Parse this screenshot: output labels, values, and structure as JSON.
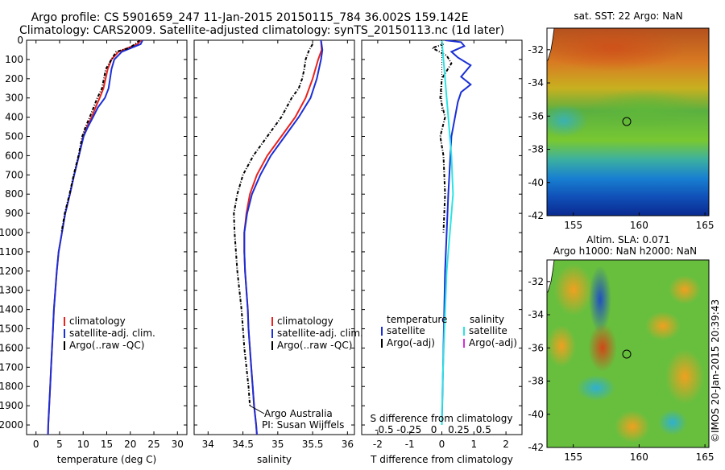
{
  "header": {
    "line1": "Argo profile: CS 5901659_247 11-Jan-2015 20150115_784 36.002S 159.142E",
    "line2": "Climatology: CARS2009. Satellite-adjusted climatology: synTS_20150113.nc (1d later)"
  },
  "colors": {
    "climatology": "#e8231f",
    "satellite": "#1a2fd6",
    "argo": "#000000",
    "sat_salinity": "#2ee3e3",
    "argo_adj_salinity": "#d62fd6"
  },
  "chart_data": [
    {
      "id": "temperature",
      "type": "line",
      "xlabel": "temperature (deg C)",
      "xlim": [
        -2,
        32
      ],
      "ylim": [
        2050,
        0
      ],
      "xticks": [
        0,
        5,
        10,
        15,
        20,
        25,
        30
      ],
      "yticks": [
        0,
        100,
        200,
        300,
        400,
        500,
        600,
        700,
        800,
        900,
        1000,
        1100,
        1200,
        1300,
        1400,
        1500,
        1600,
        1700,
        1800,
        1900,
        2000
      ],
      "legend": [
        "climatology",
        "satellite-adj. clim.",
        "Argo(..raw -QC)"
      ],
      "series": [
        {
          "name": "climatology",
          "color": "#e8231f",
          "points": [
            [
              22.3,
              0
            ],
            [
              21.5,
              20
            ],
            [
              19.5,
              40
            ],
            [
              17.5,
              60
            ],
            [
              16,
              100
            ],
            [
              15.2,
              150
            ],
            [
              14.3,
              250
            ],
            [
              13.5,
              300
            ],
            [
              12.6,
              350
            ],
            [
              11.8,
              400
            ],
            [
              10.8,
              450
            ],
            [
              10,
              500
            ],
            [
              9.1,
              600
            ],
            [
              8.1,
              700
            ],
            [
              7.2,
              800
            ],
            [
              6.2,
              900
            ],
            [
              5.5,
              1000
            ],
            [
              4.8,
              1100
            ],
            [
              4.4,
              1200
            ],
            [
              4.1,
              1300
            ],
            [
              3.8,
              1400
            ],
            [
              3.6,
              1500
            ],
            [
              3.4,
              1600
            ],
            [
              3.2,
              1700
            ],
            [
              3.0,
              1800
            ],
            [
              2.8,
              1900
            ],
            [
              2.6,
              2000
            ],
            [
              2.55,
              2050
            ]
          ]
        },
        {
          "name": "satellite-adj. clim.",
          "color": "#1a2fd6",
          "points": [
            [
              22.6,
              0
            ],
            [
              22.2,
              20
            ],
            [
              20.2,
              40
            ],
            [
              18.2,
              60
            ],
            [
              16.6,
              100
            ],
            [
              16,
              150
            ],
            [
              15.4,
              250
            ],
            [
              14.6,
              300
            ],
            [
              13.1,
              350
            ],
            [
              12.1,
              400
            ],
            [
              11,
              450
            ],
            [
              10.1,
              500
            ],
            [
              9.1,
              600
            ],
            [
              8.1,
              700
            ],
            [
              7.2,
              800
            ],
            [
              6.2,
              900
            ],
            [
              5.5,
              1000
            ],
            [
              4.8,
              1100
            ],
            [
              4.4,
              1200
            ],
            [
              4.1,
              1300
            ],
            [
              3.8,
              1400
            ],
            [
              3.6,
              1500
            ],
            [
              3.4,
              1600
            ],
            [
              3.2,
              1700
            ],
            [
              3.0,
              1800
            ],
            [
              2.8,
              1900
            ],
            [
              2.6,
              2000
            ],
            [
              2.55,
              2050
            ]
          ]
        },
        {
          "name": "Argo(..raw -QC)",
          "color": "#000000",
          "points": [
            [
              22,
              0
            ],
            [
              21,
              20
            ],
            [
              19.8,
              40
            ],
            [
              17,
              60
            ],
            [
              16,
              100
            ],
            [
              14.8,
              150
            ],
            [
              14,
              250
            ],
            [
              13,
              300
            ],
            [
              12.2,
              350
            ],
            [
              11.4,
              400
            ],
            [
              10.5,
              450
            ],
            [
              9.8,
              500
            ],
            [
              9,
              600
            ],
            [
              8,
              700
            ],
            [
              7.1,
              800
            ],
            [
              6.1,
              900
            ],
            [
              5.4,
              1000
            ]
          ]
        }
      ]
    },
    {
      "id": "salinity",
      "type": "line",
      "xlabel": "salinity",
      "xlim": [
        33.8,
        36.1
      ],
      "ylim": [
        2050,
        0
      ],
      "xticks": [
        34,
        34.5,
        35,
        35.5,
        36
      ],
      "legend": [
        "climatology",
        "satellite-adj. clim.",
        "Argo(..raw -QC)"
      ],
      "annotation": [
        "Argo Australia",
        "PI: Susan Wijffels"
      ],
      "series": [
        {
          "name": "climatology",
          "color": "#e8231f",
          "points": [
            [
              35.62,
              0
            ],
            [
              35.63,
              50
            ],
            [
              35.58,
              100
            ],
            [
              35.5,
              200
            ],
            [
              35.4,
              300
            ],
            [
              35.25,
              400
            ],
            [
              35.05,
              500
            ],
            [
              34.85,
              600
            ],
            [
              34.7,
              700
            ],
            [
              34.6,
              800
            ],
            [
              34.55,
              900
            ],
            [
              34.52,
              1000
            ],
            [
              34.52,
              1100
            ],
            [
              34.53,
              1200
            ],
            [
              34.55,
              1300
            ],
            [
              34.57,
              1400
            ],
            [
              34.58,
              1500
            ],
            [
              34.6,
              1600
            ],
            [
              34.62,
              1700
            ],
            [
              34.64,
              1800
            ],
            [
              34.66,
              1900
            ],
            [
              34.69,
              2000
            ],
            [
              34.7,
              2050
            ]
          ]
        },
        {
          "name": "satellite-adj. clim.",
          "color": "#1a2fd6",
          "points": [
            [
              35.62,
              0
            ],
            [
              35.64,
              50
            ],
            [
              35.62,
              100
            ],
            [
              35.56,
              200
            ],
            [
              35.47,
              300
            ],
            [
              35.3,
              400
            ],
            [
              35.1,
              500
            ],
            [
              34.9,
              600
            ],
            [
              34.75,
              700
            ],
            [
              34.63,
              800
            ],
            [
              34.56,
              900
            ],
            [
              34.52,
              1000
            ],
            [
              34.52,
              1100
            ],
            [
              34.53,
              1200
            ],
            [
              34.55,
              1300
            ],
            [
              34.57,
              1400
            ],
            [
              34.58,
              1500
            ],
            [
              34.6,
              1600
            ],
            [
              34.62,
              1700
            ],
            [
              34.64,
              1800
            ],
            [
              34.66,
              1900
            ],
            [
              34.69,
              2000
            ],
            [
              34.7,
              2050
            ]
          ]
        },
        {
          "name": "Argo(..raw -QC)",
          "color": "#000000",
          "points": [
            [
              35.5,
              20
            ],
            [
              35.45,
              50
            ],
            [
              35.4,
              100
            ],
            [
              35.38,
              150
            ],
            [
              35.35,
              200
            ],
            [
              35.3,
              250
            ],
            [
              35.2,
              300
            ],
            [
              35.05,
              400
            ],
            [
              34.85,
              500
            ],
            [
              34.65,
              600
            ],
            [
              34.5,
              700
            ],
            [
              34.42,
              800
            ],
            [
              34.37,
              900
            ],
            [
              34.38,
              1000
            ],
            [
              34.4,
              1100
            ],
            [
              34.42,
              1200
            ],
            [
              34.45,
              1300
            ],
            [
              34.48,
              1400
            ],
            [
              34.5,
              1500
            ],
            [
              34.52,
              1600
            ],
            [
              34.55,
              1700
            ],
            [
              34.58,
              1800
            ],
            [
              34.6,
              1900
            ]
          ]
        }
      ]
    },
    {
      "id": "difference",
      "type": "line",
      "xlabel": "T difference from climatology",
      "xlabel2": "S difference from climatology",
      "xlim": [
        -2.5,
        2.5
      ],
      "ylim": [
        2050,
        0
      ],
      "xticks": [
        -2,
        -1,
        0,
        1,
        2
      ],
      "xticks2": [
        "-0.5",
        "-0.25",
        "0",
        "0.25",
        "0.5"
      ],
      "legend_titles": [
        "temperature",
        "salinity"
      ],
      "legend_left": [
        "satellite",
        "Argo(-adj)"
      ],
      "legend_right": [
        "satellite",
        "Argo(-adj)"
      ],
      "series": [
        {
          "name": "satellite",
          "color": "#1a2fd6",
          "points": [
            [
              0.1,
              0
            ],
            [
              0.6,
              10
            ],
            [
              0.7,
              30
            ],
            [
              0.3,
              60
            ],
            [
              0.5,
              90
            ],
            [
              0.9,
              130
            ],
            [
              0.6,
              190
            ],
            [
              0.9,
              230
            ],
            [
              0.6,
              270
            ],
            [
              0.5,
              320
            ],
            [
              0.3,
              500
            ],
            [
              0.2,
              800
            ],
            [
              0.1,
              1200
            ],
            [
              0.05,
              1600
            ],
            [
              0,
              2000
            ]
          ]
        },
        {
          "name": "Argo(-adj)",
          "color": "#000000",
          "points": [
            [
              0.05,
              20
            ],
            [
              -0.3,
              40
            ],
            [
              0.15,
              80
            ],
            [
              0.3,
              120
            ],
            [
              0,
              200
            ],
            [
              -0.05,
              300
            ],
            [
              0.1,
              400
            ],
            [
              -0.05,
              500
            ],
            [
              0.05,
              600
            ],
            [
              0.1,
              800
            ],
            [
              0.05,
              1000
            ]
          ]
        },
        {
          "name": "salinity satellite",
          "color": "#2ee3e3",
          "points": [
            [
              0,
              0
            ],
            [
              0.1,
              200
            ],
            [
              0.2,
              400
            ],
            [
              0.3,
              600
            ],
            [
              0.35,
              800
            ],
            [
              0.25,
              1000
            ],
            [
              0.15,
              1200
            ],
            [
              0.08,
              1500
            ],
            [
              0.02,
              1800
            ],
            [
              0,
              2000
            ]
          ]
        }
      ]
    },
    {
      "id": "sst_map",
      "type": "heatmap",
      "title": "sat. SST: 22 Argo: NaN",
      "xticks": [
        "155",
        "160",
        "165"
      ],
      "yticks": [
        "-32",
        "-34",
        "-36",
        "-38",
        "-40",
        "-42"
      ],
      "xlim": [
        153,
        165.3
      ],
      "ylim": [
        -42,
        -30.7
      ],
      "marker": {
        "lon": 159.142,
        "lat": -36.002
      }
    },
    {
      "id": "sla_map",
      "type": "heatmap",
      "title": "Altim. SLA: 0.071",
      "title2": "Argo h1000: NaN h2000: NaN",
      "xticks": [
        "155",
        "160",
        "165"
      ],
      "yticks": [
        "-32",
        "-34",
        "-36",
        "-38",
        "-40",
        "-42"
      ],
      "xlim": [
        153,
        165.3
      ],
      "ylim": [
        -42,
        -30.7
      ],
      "marker": {
        "lon": 159.142,
        "lat": -36.002
      }
    }
  ],
  "credit": "©IMOS 20-Jan-2015 20:39:43"
}
